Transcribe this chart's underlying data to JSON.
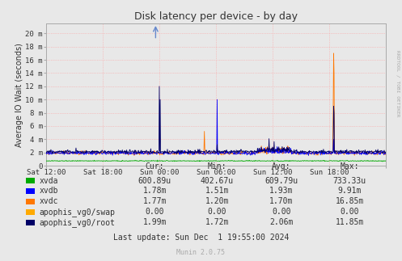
{
  "title": "Disk latency per device - by day",
  "ylabel": "Average IO Wait (seconds)",
  "background_color": "#E8E8E8",
  "plot_bg_color": "#E8E8E8",
  "grid_color": "#FF9999",
  "ytick_labels": [
    "0",
    "2 m",
    "4 m",
    "6 m",
    "8 m",
    "10 m",
    "12 m",
    "14 m",
    "16 m",
    "18 m",
    "20 m"
  ],
  "ytick_values": [
    0,
    0.002,
    0.004,
    0.006,
    0.008,
    0.01,
    0.012,
    0.014,
    0.016,
    0.018,
    0.02
  ],
  "xtick_labels": [
    "Sat 12:00",
    "Sat 18:00",
    "Sun 00:00",
    "Sun 06:00",
    "Sun 12:00",
    "Sun 18:00"
  ],
  "xtick_positions": [
    0.0,
    0.1667,
    0.3333,
    0.5,
    0.6667,
    0.8333
  ],
  "ylim": [
    0,
    0.0215
  ],
  "xlim": [
    0,
    1
  ],
  "series": {
    "xvda": {
      "color": "#00AA00"
    },
    "xvdb": {
      "color": "#0000FF"
    },
    "xvdc": {
      "color": "#FF7700"
    },
    "apophis_vg0/swap": {
      "color": "#FFAA00"
    },
    "apophis_vg0/root": {
      "color": "#000066"
    }
  },
  "legend": [
    {
      "label": "xvda",
      "color": "#00AA00",
      "cur": "600.89u",
      "min": "402.67u",
      "avg": "609.79u",
      "max": "733.33u"
    },
    {
      "label": "xvdb",
      "color": "#0000FF",
      "cur": "1.78m",
      "min": "1.51m",
      "avg": "1.93m",
      "max": "9.91m"
    },
    {
      "label": "xvdc",
      "color": "#FF7700",
      "cur": "1.77m",
      "min": "1.20m",
      "avg": "1.70m",
      "max": "16.85m"
    },
    {
      "label": "apophis_vg0/swap",
      "color": "#FFAA00",
      "cur": "0.00",
      "min": "0.00",
      "avg": "0.00",
      "max": "0.00"
    },
    {
      "label": "apophis_vg0/root",
      "color": "#000066",
      "cur": "1.99m",
      "min": "1.72m",
      "avg": "2.06m",
      "max": "11.85m"
    }
  ],
  "last_update": "Last update: Sun Dec  1 19:55:00 2024",
  "munin_version": "Munin 2.0.75",
  "rrdtool_label": "RRDTOOL / TOBI OETIKER"
}
